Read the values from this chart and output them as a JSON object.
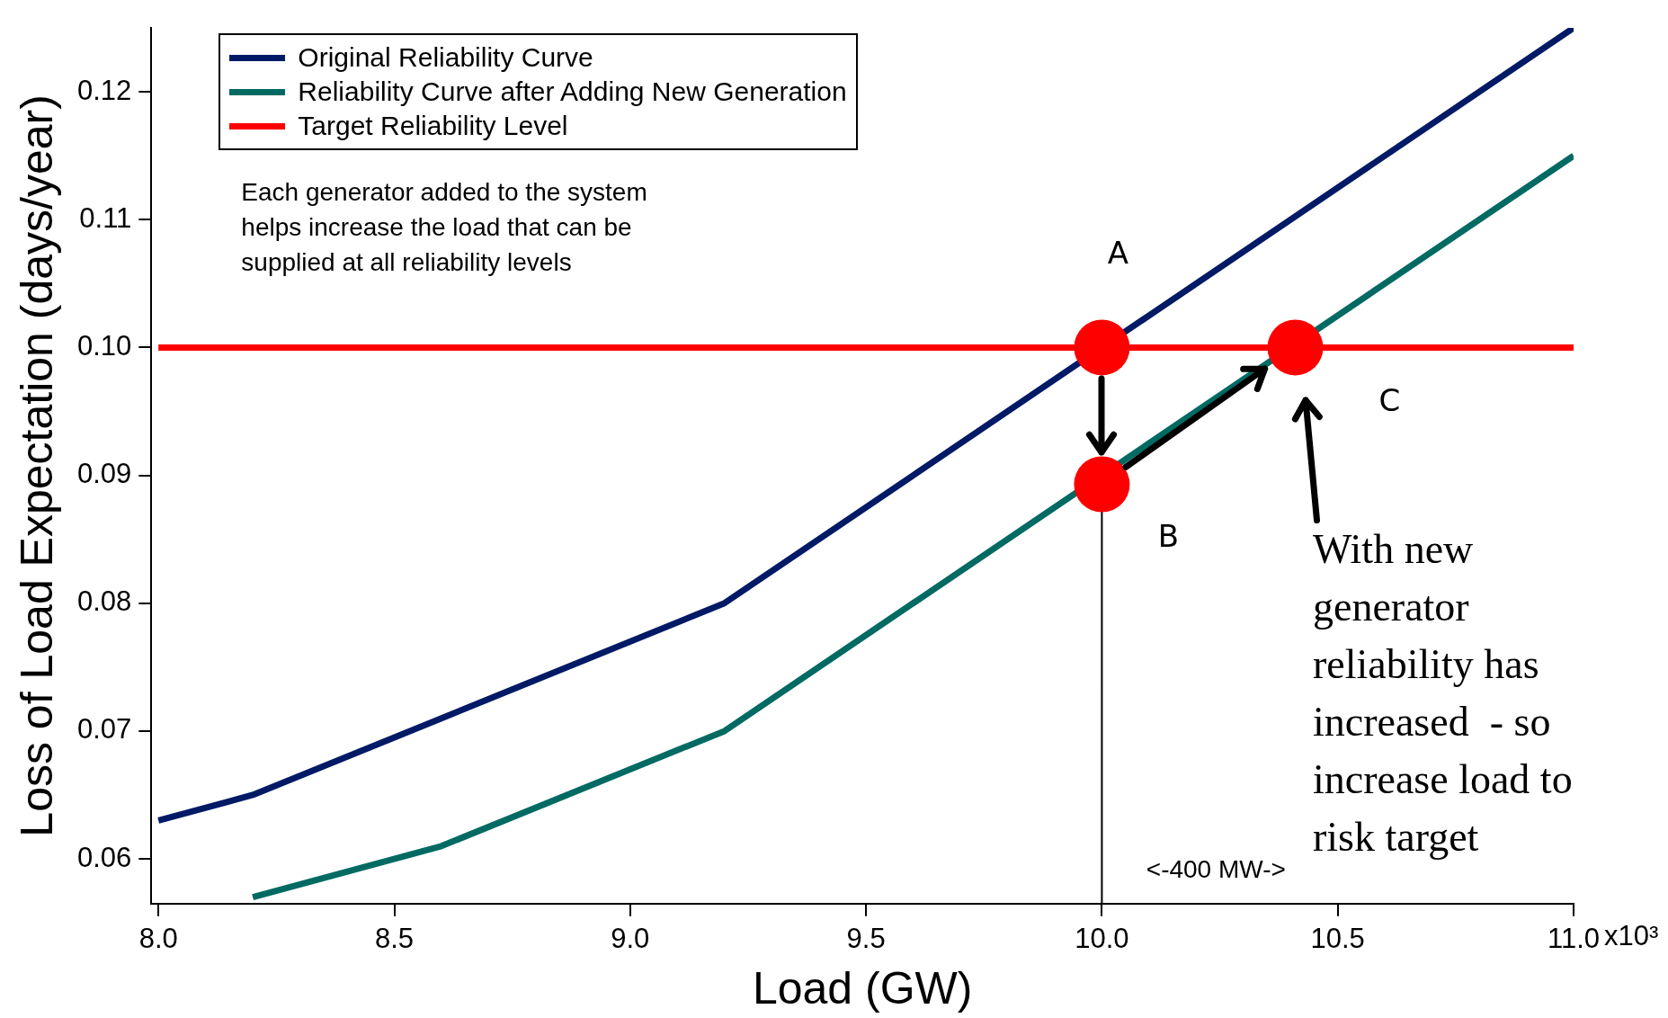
{
  "chart_data": {
    "type": "line",
    "xlabel": "Load (GW)",
    "ylabel": "Loss of Load Expectation (days/year)",
    "xlim": [
      7.985,
      11.0
    ],
    "xticks": [
      {
        "value": 8,
        "label": "8.0"
      },
      8.5,
      {
        "value": 9,
        "label": "9.0"
      },
      9.5,
      {
        "value": 10,
        "label": "10.0"
      },
      10.5,
      {
        "value": 11,
        "label": "11.0"
      }
    ],
    "ylim": [
      0.0565,
      0.125
    ],
    "yticks": [
      0.06,
      0.07,
      0.08,
      0.09,
      {
        "value": 0.1,
        "label": "0.10"
      },
      0.11,
      0.12
    ],
    "grid": false,
    "legend": "top left",
    "marker": "none",
    "line_style": "solid",
    "series": [
      {
        "name": "Original Reliability Curve",
        "color": "#001a66",
        "x": [
          8.0,
          8.2,
          8.6,
          9.2,
          11.0
        ],
        "values": [
          0.063,
          0.065,
          0.071,
          0.08,
          0.125
        ]
      },
      {
        "name": "Reliability Curve after Adding New Generation",
        "color": "#006a63",
        "x": [
          8.2,
          8.6,
          9.2,
          11.0
        ],
        "values": [
          0.057,
          0.061,
          0.07,
          0.115
        ]
      },
      {
        "name": "Target Reliability Level",
        "color": "#ff0000",
        "x": [
          8.0,
          11.0
        ],
        "values": [
          0.1,
          0.1
        ]
      },
      {
        "type": "line",
        "color": "#000000",
        "x": [
          10.0,
          10.0
        ],
        "values": [
          0.0872,
          0.0565
        ]
      },
      {
        "type": "scatter",
        "color": "#ff0000",
        "marker": "circle",
        "x": [
          10.0,
          10.0,
          10.41
        ],
        "values": [
          0.1,
          0.0893,
          0.1
        ]
      }
    ],
    "annotations": [
      "Each generator added to the system\nhelps increase the load that can be\nsupplied at all reliability levels",
      "A",
      "B",
      "C",
      "<-400 MW->",
      "x10³",
      "With new\ngenerator\nreliability has\nincreased  - so\nincrease load to\nrisk target"
    ]
  }
}
